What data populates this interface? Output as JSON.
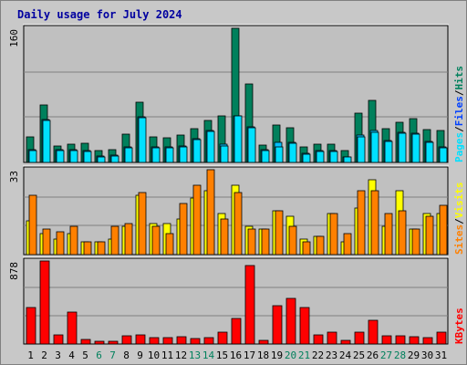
{
  "title": "Daily usage for July 2024",
  "colors": {
    "hits": "#00805c",
    "files": "#00c0ff",
    "pages": "#00e0ff",
    "visits": "#ffff00",
    "sites": "#ff8000",
    "kbytes": "#ff0000",
    "weekend_day": "#00805c",
    "weekday": "#000000",
    "plot_bg": "#c0c0c0"
  },
  "legend": {
    "top": [
      {
        "label": "Pages",
        "color": "#00e0ff"
      },
      {
        "label": "Files",
        "color": "#0040ff"
      },
      {
        "label": "Hits",
        "color": "#00805c"
      }
    ],
    "middle": [
      {
        "label": "Sites",
        "color": "#ff8000"
      },
      {
        "label": "Visits",
        "color": "#ffff00"
      }
    ],
    "bottom": [
      {
        "label": "KBytes",
        "color": "#ff0000"
      }
    ]
  },
  "chart_data": {
    "type": "bar",
    "title": "Daily usage for July 2024",
    "categories": [
      "1",
      "2",
      "3",
      "4",
      "5",
      "6",
      "7",
      "8",
      "9",
      "10",
      "11",
      "12",
      "13",
      "14",
      "15",
      "16",
      "17",
      "18",
      "19",
      "20",
      "21",
      "22",
      "23",
      "24",
      "25",
      "26",
      "27",
      "28",
      "29",
      "30",
      "31"
    ],
    "weekend_days": [
      "6",
      "7",
      "13",
      "14",
      "20",
      "21",
      "27",
      "28"
    ],
    "panels": [
      {
        "name": "hits-files-pages",
        "ymax_label": "160",
        "ylim": [
          0,
          160
        ],
        "grid": true,
        "series": [
          {
            "name": "Hits",
            "values": [
              30,
              69,
              20,
              22,
              23,
              14,
              15,
              34,
              72,
              30,
              29,
              33,
              40,
              50,
              55,
              160,
              94,
              21,
              45,
              41,
              19,
              22,
              22,
              14,
              59,
              74,
              40,
              48,
              52,
              39,
              38
            ]
          },
          {
            "name": "Files",
            "values": [
              15,
              51,
              15,
              15,
              14,
              8,
              9,
              18,
              54,
              18,
              18,
              20,
              28,
              38,
              22,
              56,
              42,
              15,
              24,
              24,
              11,
              14,
              14,
              7,
              33,
              38,
              26,
              36,
              35,
              25,
              18
            ]
          },
          {
            "name": "Pages",
            "values": [
              14,
              50,
              14,
              14,
              13,
              7,
              8,
              17,
              53,
              17,
              17,
              19,
              27,
              37,
              20,
              55,
              41,
              14,
              19,
              23,
              10,
              13,
              13,
              6,
              30,
              36,
              25,
              35,
              34,
              24,
              17
            ]
          }
        ]
      },
      {
        "name": "visits-sites",
        "ymax_label": "33",
        "ylim": [
          0,
          33
        ],
        "grid": true,
        "series": [
          {
            "name": "Visits",
            "values": [
              13,
              8,
              6,
              8,
              5,
              5,
              6,
              11,
              23,
              12,
              12,
              14,
              22,
              25,
              16,
              27,
              11,
              10,
              17,
              15,
              6,
              7,
              16,
              5,
              18,
              29,
              11,
              25,
              10,
              16,
              16
            ]
          },
          {
            "name": "Sites",
            "values": [
              23,
              10,
              9,
              11,
              5,
              5,
              11,
              12,
              24,
              11,
              8,
              20,
              27,
              33,
              14,
              24,
              10,
              10,
              17,
              11,
              5,
              7,
              16,
              8,
              25,
              25,
              16,
              17,
              10,
              15,
              19
            ]
          }
        ]
      },
      {
        "name": "kbytes",
        "ymax_label": "878",
        "ylim": [
          0,
          878
        ],
        "grid": true,
        "series": [
          {
            "name": "KBytes",
            "values": [
              390,
              878,
              100,
              340,
              50,
              25,
              30,
              90,
              100,
              70,
              70,
              75,
              60,
              70,
              130,
              270,
              825,
              40,
              410,
              480,
              390,
              100,
              130,
              40,
              130,
              250,
              85,
              85,
              80,
              70,
              130
            ]
          }
        ]
      }
    ]
  }
}
